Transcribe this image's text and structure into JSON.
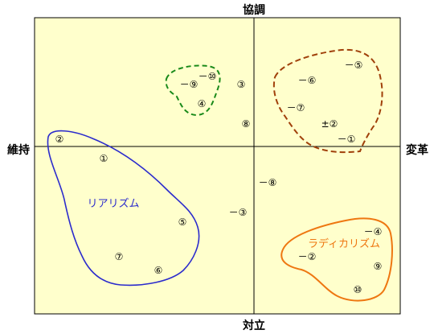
{
  "axes": {
    "top": "協調",
    "bottom": "対立",
    "left": "維持",
    "right": "変革"
  },
  "regions": {
    "realism": {
      "label": "リアリズム",
      "color": "#2b2bcc"
    },
    "radicalism": {
      "label": "ラディカリズム",
      "color": "#ee7711"
    },
    "green_group": {
      "color": "#1a8a1a"
    },
    "brown_group": {
      "color": "#a0400a"
    }
  },
  "colors": {
    "plot_background": "#ffffcc",
    "axis_line": "#000000"
  },
  "points": [
    {
      "id": "p1",
      "text": "－⑩"
    },
    {
      "id": "p2",
      "text": "－⑨"
    },
    {
      "id": "p3",
      "text": "④"
    },
    {
      "id": "p4",
      "text": "③"
    },
    {
      "id": "p5",
      "text": "⑧"
    },
    {
      "id": "p6",
      "text": "－⑤"
    },
    {
      "id": "p7",
      "text": "－⑥"
    },
    {
      "id": "p8",
      "text": "－⑦"
    },
    {
      "id": "p9",
      "text": "±②"
    },
    {
      "id": "p10",
      "text": "－①"
    },
    {
      "id": "p11",
      "text": "②"
    },
    {
      "id": "p12",
      "text": "①"
    },
    {
      "id": "p13",
      "text": "－⑧"
    },
    {
      "id": "p14",
      "text": "－③"
    },
    {
      "id": "p15",
      "text": "⑤"
    },
    {
      "id": "p16",
      "text": "⑦"
    },
    {
      "id": "p17",
      "text": "⑥"
    },
    {
      "id": "p18",
      "text": "－④"
    },
    {
      "id": "p19",
      "text": "－②"
    },
    {
      "id": "p20",
      "text": "⑨"
    },
    {
      "id": "p21",
      "text": "⑩"
    }
  ]
}
